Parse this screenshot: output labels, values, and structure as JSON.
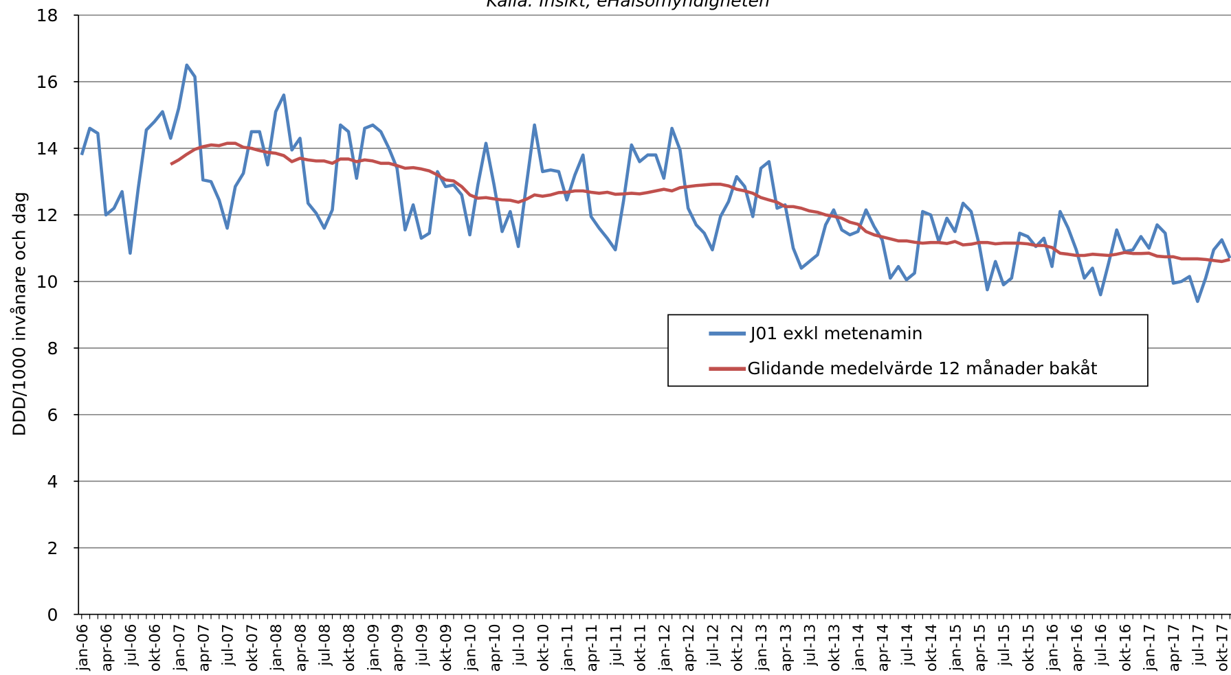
{
  "chart_data": {
    "type": "line",
    "title": "Källa: Insikt, eHälsomyndigheten",
    "y_label": "DDD/1000 invånare och dag",
    "categories": [
      "jan-06",
      null,
      null,
      "apr-06",
      null,
      null,
      "jul-06",
      null,
      null,
      "okt-06",
      null,
      null,
      "jan-07",
      null,
      null,
      "apr-07",
      null,
      null,
      "jul-07",
      null,
      null,
      "okt-07",
      null,
      null,
      "jan-08",
      null,
      null,
      "apr-08",
      null,
      null,
      "jul-08",
      null,
      null,
      "okt-08",
      null,
      null,
      "jan-09",
      null,
      null,
      "apr-09",
      null,
      null,
      "jul-09",
      null,
      null,
      "okt-09",
      null,
      null,
      "jan-10",
      null,
      null,
      "apr-10",
      null,
      null,
      "jul-10",
      null,
      null,
      "okt-10",
      null,
      null,
      "jan-11",
      null,
      null,
      "apr-11",
      null,
      null,
      "jul-11",
      null,
      null,
      "okt-11",
      null,
      null,
      "jan-12",
      null,
      null,
      "apr-12",
      null,
      null,
      "jul-12",
      null,
      null,
      "okt-12",
      null,
      null,
      "jan-13",
      null,
      null,
      "apr-13",
      null,
      null,
      "jul-13",
      null,
      null,
      "okt-13",
      null,
      null,
      "jan-14",
      null,
      null,
      "apr-14",
      null,
      null,
      "jul-14",
      null,
      null,
      "okt-14",
      null,
      null,
      "jan-15",
      null,
      null,
      "apr-15",
      null,
      null,
      "jul-15",
      null,
      null,
      "okt-15",
      null,
      null,
      "jan-16",
      null,
      null,
      "apr-16",
      null,
      null,
      "jul-16",
      null,
      null,
      "okt-16",
      null,
      null,
      "jan-17",
      null,
      null,
      "apr-17",
      null,
      null,
      "jul-17",
      null,
      null,
      "okt-17",
      null
    ],
    "series": [
      {
        "name": "J01 exkl metenamin",
        "color": "#4f81bd",
        "values": [
          13.8,
          14.6,
          14.45,
          12.0,
          12.2,
          12.7,
          10.85,
          12.8,
          14.55,
          14.8,
          15.1,
          14.3,
          15.2,
          16.5,
          16.15,
          13.05,
          13.0,
          12.45,
          11.6,
          12.85,
          13.25,
          14.5,
          14.5,
          13.5,
          15.1,
          15.6,
          13.95,
          14.3,
          12.35,
          12.05,
          11.6,
          12.15,
          14.7,
          14.5,
          13.1,
          14.6,
          14.7,
          14.5,
          14.0,
          13.4,
          11.55,
          12.3,
          11.3,
          11.45,
          13.3,
          12.85,
          12.9,
          12.6,
          11.4,
          12.9,
          14.15,
          12.9,
          11.5,
          12.1,
          11.05,
          12.9,
          14.7,
          13.3,
          13.35,
          13.3,
          12.45,
          13.2,
          13.8,
          11.95,
          11.6,
          11.3,
          10.95,
          12.4,
          14.1,
          13.6,
          13.8,
          13.8,
          13.1,
          14.6,
          13.95,
          12.2,
          11.7,
          11.45,
          10.95,
          11.95,
          12.4,
          13.15,
          12.85,
          11.95,
          13.4,
          13.6,
          12.2,
          12.3,
          11.0,
          10.4,
          10.6,
          10.8,
          11.7,
          12.15,
          11.55,
          11.4,
          11.5,
          12.15,
          11.65,
          11.25,
          10.1,
          10.45,
          10.05,
          10.25,
          12.1,
          12.0,
          11.2,
          11.9,
          11.5,
          12.35,
          12.1,
          11.1,
          9.75,
          10.6,
          9.9,
          10.1,
          11.45,
          11.35,
          11.05,
          11.3,
          10.45,
          12.1,
          11.6,
          10.95,
          10.1,
          10.4,
          9.6,
          10.55,
          11.55,
          10.9,
          10.95,
          11.35,
          11.0,
          11.7,
          11.45,
          9.95,
          10.0,
          10.15,
          9.4,
          10.1,
          10.95,
          11.25,
          10.7
        ]
      },
      {
        "name": "Glidande medelvärde 12 månader bakåt",
        "color": "#c0504d",
        "values": [
          null,
          null,
          null,
          null,
          null,
          null,
          null,
          null,
          null,
          null,
          null,
          13.52,
          13.65,
          13.82,
          13.97,
          14.05,
          14.1,
          14.08,
          14.15,
          14.15,
          14.03,
          14.0,
          13.93,
          13.88,
          13.85,
          13.78,
          13.6,
          13.7,
          13.65,
          13.62,
          13.62,
          13.55,
          13.68,
          13.68,
          13.6,
          13.65,
          13.62,
          13.55,
          13.55,
          13.48,
          13.4,
          13.42,
          13.38,
          13.32,
          13.2,
          13.05,
          13.02,
          12.85,
          12.6,
          12.5,
          12.52,
          12.48,
          12.45,
          12.44,
          12.38,
          12.47,
          12.6,
          12.56,
          12.6,
          12.67,
          12.68,
          12.72,
          12.72,
          12.68,
          12.65,
          12.68,
          12.62,
          12.63,
          12.65,
          12.63,
          12.67,
          12.72,
          12.77,
          12.72,
          12.82,
          12.85,
          12.88,
          12.9,
          12.92,
          12.92,
          12.87,
          12.77,
          12.72,
          12.65,
          12.52,
          12.45,
          12.38,
          12.25,
          12.25,
          12.2,
          12.12,
          12.08,
          12.0,
          11.96,
          11.9,
          11.78,
          11.72,
          11.5,
          11.4,
          11.34,
          11.28,
          11.22,
          11.22,
          11.18,
          11.15,
          11.17,
          11.17,
          11.14,
          11.2,
          11.1,
          11.12,
          11.17,
          11.17,
          11.13,
          11.15,
          11.15,
          11.15,
          11.13,
          11.08,
          11.08,
          11.02,
          10.85,
          10.82,
          10.78,
          10.78,
          10.82,
          10.8,
          10.78,
          10.82,
          10.87,
          10.84,
          10.84,
          10.85,
          10.76,
          10.74,
          10.74,
          10.68,
          10.68,
          10.68,
          10.66,
          10.63,
          10.6,
          10.66
        ]
      }
    ],
    "ylim": [
      0,
      18
    ],
    "yticks": [
      0,
      2,
      4,
      6,
      8,
      10,
      12,
      14,
      16,
      18
    ],
    "grid": true
  }
}
